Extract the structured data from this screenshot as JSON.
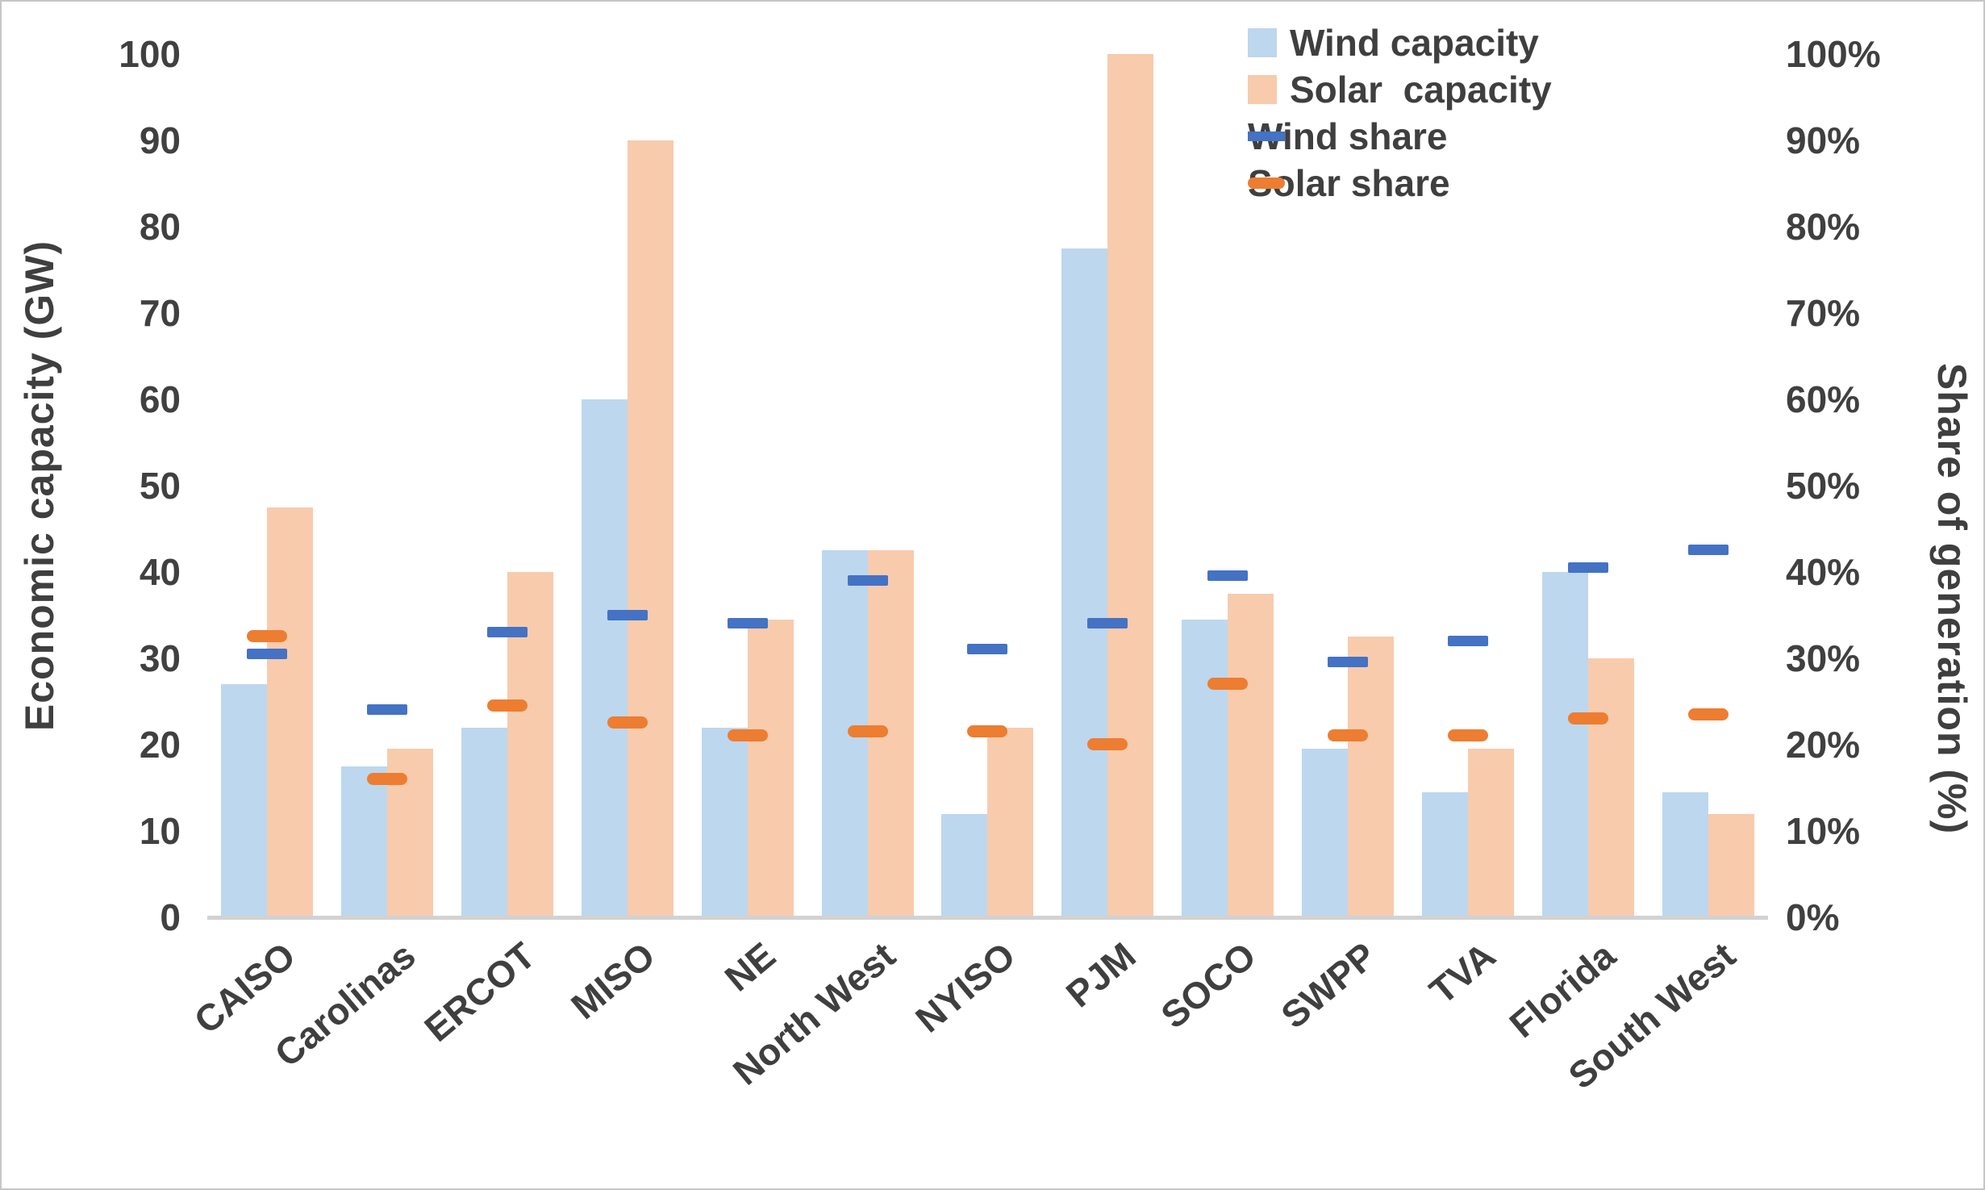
{
  "figure": {
    "background": "#FFFFFF",
    "border_color": "#C6C6C6",
    "axis_line_color": "#D2D2D2",
    "text_color": "#404040"
  },
  "left_axis": {
    "title": "Economic capacity (GW)",
    "min": 0,
    "max": 100,
    "ticks": [
      "100",
      "90",
      "80",
      "70",
      "60",
      "50",
      "40",
      "30",
      "20",
      "10",
      "0"
    ]
  },
  "right_axis": {
    "title": "Share of generation (%)",
    "min": 0,
    "max": 100,
    "ticks": [
      "100%",
      "90%",
      "80%",
      "70%",
      "60%",
      "50%",
      "40%",
      "30%",
      "20%",
      "10%",
      "0%"
    ]
  },
  "legend": {
    "position": "top-right",
    "items": [
      {
        "label": "Wind capacity",
        "marker": "square",
        "color": "#BDD7EE"
      },
      {
        "label": "Solar  capacity",
        "marker": "square",
        "color": "#F8CBAD"
      },
      {
        "label": "Wind share",
        "marker": "dash",
        "color": "#4472C4"
      },
      {
        "label": "Solar share",
        "marker": "dash",
        "color": "#ED7D31"
      }
    ]
  },
  "chart_data": {
    "type": "bar",
    "subtype": "grouped-bars-with-dash-markers",
    "grid": false,
    "categories": [
      "CAISO",
      "Carolinas",
      "ERCOT",
      "MISO",
      "NE",
      "North West",
      "NYISO",
      "PJM",
      "SOCO",
      "SWPP",
      "TVA",
      "Florida",
      "South West"
    ],
    "ylim_left": [
      0,
      100
    ],
    "ylim_right_percent": [
      0,
      100
    ],
    "series": [
      {
        "name": "Wind capacity",
        "type": "bar",
        "axis": "left",
        "unit": "GW",
        "color": "#BDD7EE",
        "values": [
          27,
          17.5,
          22,
          60,
          22,
          42.5,
          12,
          77.5,
          34.5,
          19.5,
          14.5,
          40,
          14.5
        ]
      },
      {
        "name": "Solar  capacity",
        "type": "bar",
        "axis": "left",
        "unit": "GW",
        "color": "#F8CBAD",
        "values": [
          47.5,
          19.5,
          40,
          90,
          34.5,
          42.5,
          22,
          100,
          37.5,
          32.5,
          19.5,
          30,
          12
        ]
      },
      {
        "name": "Wind share",
        "type": "dash",
        "axis": "right",
        "unit": "%",
        "color": "#4472C4",
        "values": [
          30.5,
          24,
          33,
          35,
          34,
          39,
          31,
          34,
          39.5,
          29.5,
          32,
          40.5,
          42.5
        ]
      },
      {
        "name": "Solar share",
        "type": "dash",
        "axis": "right",
        "unit": "%",
        "color": "#ED7D31",
        "values": [
          32.5,
          16,
          24.5,
          22.5,
          21,
          21.5,
          21.5,
          20,
          27,
          21,
          21,
          23,
          23.5
        ]
      }
    ]
  }
}
